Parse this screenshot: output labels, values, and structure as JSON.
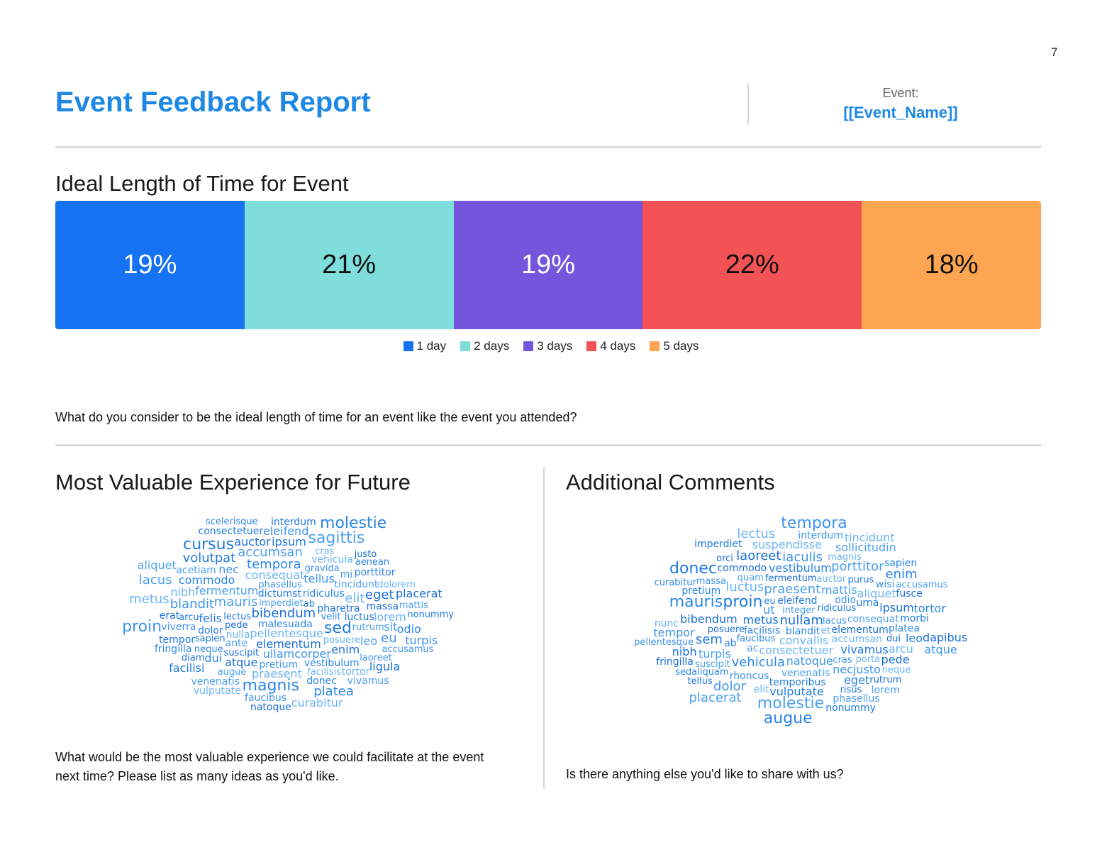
{
  "page_number": "7",
  "header": {
    "title": "Event Feedback Report",
    "event_label": "Event:",
    "event_name": "[[Event_Name]]"
  },
  "ideal_length": {
    "title": "Ideal Length of Time for Event",
    "question": "What do you consider to be the ideal length of time for an event like the event you attended?"
  },
  "chart_data": {
    "type": "bar",
    "orientation": "stacked-horizontal-100",
    "title": "Ideal Length of Time for Event",
    "categories": [
      "1 day",
      "2 days",
      "3 days",
      "4 days",
      "5 days"
    ],
    "values": [
      19,
      21,
      19,
      22,
      18
    ],
    "labels": [
      "19%",
      "21%",
      "19%",
      "22%",
      "18%"
    ],
    "colors": [
      "#1572f3",
      "#7fdedb",
      "#7555db",
      "#f45356",
      "#fda550"
    ],
    "label_colors": [
      "#ffffff",
      "#111111",
      "#ffffff",
      "#111111",
      "#111111"
    ],
    "legend": "bottom-center"
  },
  "valuable": {
    "title": "Most Valuable Experience for Future",
    "question": "What would be the most valuable experience we could facilitate at the event next time? Please list as many ideas as you'd like.",
    "words": [
      "bibendum",
      "malesuada",
      "imperdiet",
      "pellentesque",
      "dictumst",
      "phasellus",
      "elementum",
      "ridiculus",
      "mauris",
      "consequat",
      "lectus",
      "ullamcorper",
      "pharetra",
      "velit",
      "fermentum",
      "nulla",
      "sed",
      "tellus",
      "suscipit",
      "tempora",
      "ante",
      "posuere",
      "felis",
      "pretium",
      "pede",
      "commodo",
      "tincidunt",
      "elit",
      "dolor",
      "gravida",
      "atque",
      "vestibulum",
      "rutrum",
      "praesent",
      "luctus",
      "blandit",
      "enim",
      "neque",
      "accumsan",
      "vehicula",
      "sapien",
      "nec",
      "massa",
      "magnis",
      "leo",
      "facilisis",
      "volutpat",
      "mi",
      "arcu",
      "dui",
      "acetiam",
      "cras",
      "ipsum",
      "viverra",
      "eget",
      "porttitor",
      "augue",
      "nibh",
      "tempor",
      "laoreet",
      "auctor",
      "donec",
      "sagittis",
      "lorem",
      "ab",
      "eu",
      "erat",
      "aenean",
      "sit",
      "tortor",
      "cursus",
      "eleifend",
      "diam",
      "platea",
      "venenatis",
      "dolorem",
      "facilisi",
      "faucibus",
      "justo",
      "odio",
      "vivamus",
      "metus",
      "consectetuer",
      "accusamus",
      "ligula",
      "fringilla",
      "mattis",
      "curabitur",
      "interdum",
      "proin",
      "placerat",
      "scelerisque",
      "lacus",
      "vulputate",
      "nonummy",
      "turpis",
      "natoque",
      "molestie",
      "aliquet"
    ]
  },
  "comments": {
    "title": "Additional Comments",
    "question": "Is there anything else you'd like to share with us?",
    "words": [
      "nullam",
      "blandit",
      "integer",
      "convallis",
      "eleifend",
      "lacus",
      "metus",
      "facilisis",
      "praesent",
      "consectetuer",
      "ridiculus",
      "ut",
      "elementum",
      "faucibus",
      "mattis",
      "accumsan",
      "proin",
      "natoque",
      "fermentum",
      "vehicula",
      "consequat",
      "auctor",
      "vivamus",
      "odio",
      "posuere",
      "vestibulum",
      "venenatis",
      "luctus",
      "urna",
      "cras",
      "bibendum",
      "ab",
      "quam",
      "aliquet",
      "temporibus",
      "iaculis",
      "ipsum",
      "eu",
      "porttitor",
      "et",
      "purus",
      "necjusto",
      "commodo",
      "mauris",
      "turpis",
      "porta",
      "sem",
      "rhoncus",
      "dui",
      "eget",
      "ac",
      "magnis",
      "vulputate",
      "wisi",
      "laoreet",
      "pretium",
      "suscipit",
      "suspendisse",
      "morbi",
      "massa",
      "pede",
      "platea",
      "molestie",
      "arcu",
      "risus",
      "dolor",
      "fusce",
      "sedaliquam",
      "sollicitudin",
      "elit",
      "donec",
      "tempor",
      "rutrum",
      "enim",
      "phasellus",
      "neque",
      "leo",
      "interdum",
      "orci",
      "tortor",
      "lorem",
      "lectus",
      "nonummy",
      "pellentesque",
      "nibh",
      "sapien",
      "accusamus",
      "tincidunt",
      "imperdiet",
      "tempora",
      "dapibus",
      "curabitur",
      "placerat",
      "nunc",
      "tellus",
      "atque",
      "fringilla",
      "augue"
    ]
  }
}
